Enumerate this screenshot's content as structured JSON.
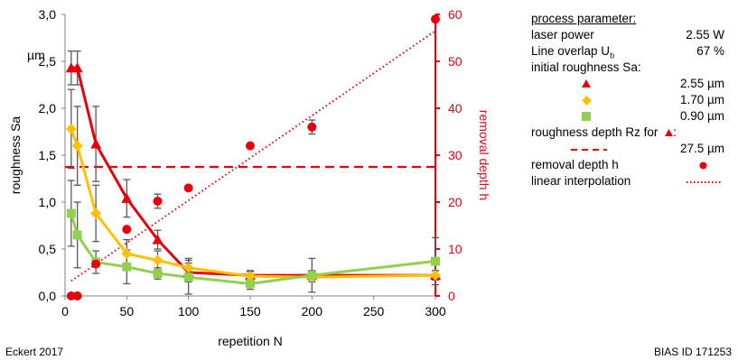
{
  "chart_data": {
    "type": "line",
    "xlabel": "repetition N",
    "ylabel_left": "roughness Sa",
    "ylabel_left_unit": "µm",
    "ylabel_right": "removal depth h",
    "x_ticks": [
      "0",
      "50",
      "100",
      "150",
      "200",
      "250",
      "300"
    ],
    "yleft_ticks": [
      "0,0",
      "0,5",
      "1,0",
      "1,5",
      "2,0",
      "2,5",
      "3,0"
    ],
    "yright_ticks": [
      "0",
      "10",
      "20",
      "30",
      "40",
      "50",
      "60"
    ],
    "xlim": [
      0,
      300
    ],
    "ylim_left": [
      0,
      3.0
    ],
    "ylim_right": [
      0,
      60
    ],
    "grid": false,
    "legend_position": "right",
    "series": [
      {
        "name": "2.55 µm",
        "axis": "left",
        "marker": "triangle",
        "color": "#e8000b",
        "x": [
          5,
          10,
          25,
          50,
          75,
          100,
          150,
          200,
          300
        ],
        "y": [
          2.43,
          2.43,
          1.62,
          1.04,
          0.6,
          0.25,
          0.22,
          0.22,
          0.22
        ],
        "err": [
          0.18,
          0.18,
          0.4,
          0.2,
          0.1,
          0.1,
          0.05,
          0.05,
          0.05
        ]
      },
      {
        "name": "1.70 µm",
        "axis": "left",
        "marker": "diamond",
        "color": "#ffc000",
        "x": [
          5,
          10,
          25,
          50,
          75,
          100,
          150,
          200,
          300
        ],
        "y": [
          1.78,
          1.6,
          0.88,
          0.45,
          0.38,
          0.3,
          0.21,
          0.2,
          0.22
        ],
        "err": [
          0.42,
          0.42,
          0.3,
          0.15,
          0.1,
          0.1,
          0.05,
          0.05,
          0.05
        ]
      },
      {
        "name": "0.90 µm",
        "axis": "left",
        "marker": "square",
        "color": "#92d050",
        "x": [
          5,
          10,
          25,
          50,
          75,
          100,
          150,
          200,
          300
        ],
        "y": [
          0.88,
          0.65,
          0.36,
          0.31,
          0.24,
          0.2,
          0.13,
          0.22,
          0.37
        ],
        "err": [
          0.35,
          0.35,
          0.12,
          0.18,
          0.06,
          0.18,
          0.06,
          0.18,
          0.25
        ]
      },
      {
        "name": "removal depth h",
        "axis": "right",
        "marker": "circle",
        "color": "#e8000b",
        "x": [
          5,
          10,
          25,
          50,
          75,
          100,
          150,
          200,
          300
        ],
        "y": [
          0,
          0,
          6.8,
          14.2,
          20.2,
          23,
          32,
          36,
          59
        ],
        "err": [
          0,
          0,
          0,
          0,
          1.5,
          0,
          0,
          1.5,
          0
        ]
      }
    ],
    "linear_interpolation": {
      "axis": "right",
      "x": [
        5,
        300
      ],
      "y": [
        3.2,
        56.5
      ]
    },
    "rz_line": {
      "axis": "right",
      "y": 27.5
    }
  },
  "legend": {
    "title": "process parameter:",
    "laser_power_label": "laser power",
    "laser_power_value": "2.55 W",
    "line_overlap_label": "Line overlap U",
    "line_overlap_sub": "b",
    "line_overlap_value": "67 %",
    "initial_roughness_label": "initial roughness Sa:",
    "sa_red_value": "2.55 µm",
    "sa_yellow_value": "1.70 µm",
    "sa_green_value": "0.90 µm",
    "rz_label": "roughness depth Rz for",
    "rz_value": "27.5 µm",
    "removal_depth_label": "removal depth h",
    "linear_interpolation_label": "linear interpolation"
  },
  "footer": {
    "left": "Eckert 2017",
    "right": "BIAS ID 171253"
  },
  "colors": {
    "red": "#e8000b",
    "yellow": "#ffc000",
    "green": "#92d050",
    "error_bar": "#595959",
    "axis": "#808080"
  }
}
